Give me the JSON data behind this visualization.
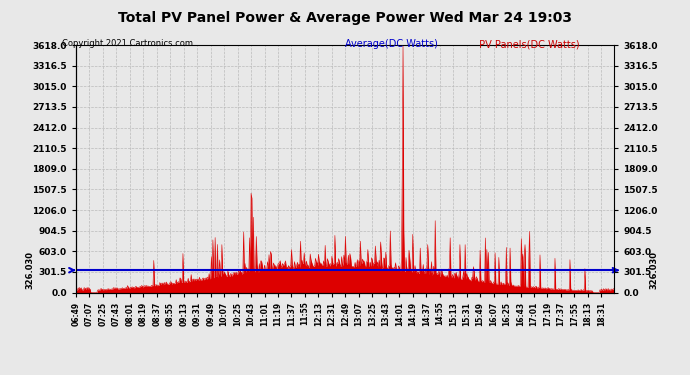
{
  "title": "Total PV Panel Power & Average Power Wed Mar 24 19:03",
  "copyright": "Copyright 2021 Cartronics.com",
  "legend_avg": "Average(DC Watts)",
  "legend_pv": " PV Panels(DC Watts)",
  "avg_value": 326.03,
  "avg_label": "326.030",
  "ymax": 3618.0,
  "ymin": 0.0,
  "yticks": [
    0.0,
    301.5,
    603.0,
    904.5,
    1206.0,
    1507.5,
    1809.0,
    2110.5,
    2412.0,
    2713.5,
    3015.0,
    3316.5,
    3618.0
  ],
  "background_color": "#e8e8e8",
  "grid_color": "#bbbbbb",
  "fill_color": "#dd0000",
  "line_color": "#dd0000",
  "avg_line_color": "#0000cc",
  "title_color": "#000000",
  "copyright_color": "#000000",
  "legend_avg_color": "#0000cc",
  "legend_pv_color": "#cc0000",
  "n_points": 720,
  "tick_step": 18
}
